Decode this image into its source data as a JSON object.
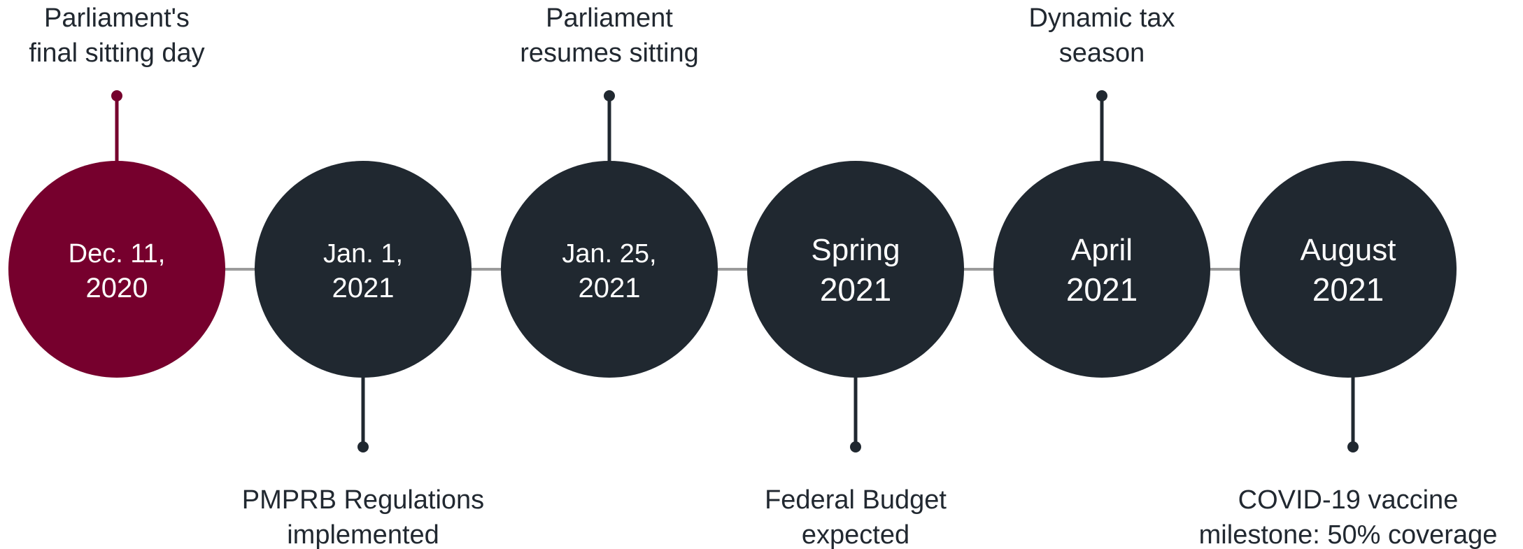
{
  "colors": {
    "highlight": "#76002d",
    "circle": "#202830",
    "line": "#9b9b9b",
    "text": "#212830",
    "circle_text": "#ffffff"
  },
  "events": [
    {
      "date_line1": "Dec. 11,",
      "date_line2": "2020",
      "label_line1": "Parliament's",
      "label_line2": "final sitting day",
      "position": "above",
      "highlighted": true
    },
    {
      "date_line1": "Jan. 1,",
      "date_line2": "2021",
      "label_line1": "PMPRB Regulations",
      "label_line2": "implemented",
      "position": "below",
      "highlighted": false
    },
    {
      "date_line1": "Jan. 25,",
      "date_line2": "2021",
      "label_line1": "Parliament",
      "label_line2": "resumes sitting",
      "position": "above",
      "highlighted": false
    },
    {
      "date_line1": "Spring",
      "date_line2": "2021",
      "label_line1": "Federal Budget",
      "label_line2": "expected",
      "position": "below",
      "highlighted": false
    },
    {
      "date_line1": "April",
      "date_line2": "2021",
      "label_line1": "Dynamic tax",
      "label_line2": "season",
      "position": "above",
      "highlighted": false
    },
    {
      "date_line1": "August",
      "date_line2": "2021",
      "label_line1": "COVID-19 vaccine",
      "label_line2": "milestone: 50% coverage",
      "position": "below",
      "highlighted": false
    }
  ]
}
